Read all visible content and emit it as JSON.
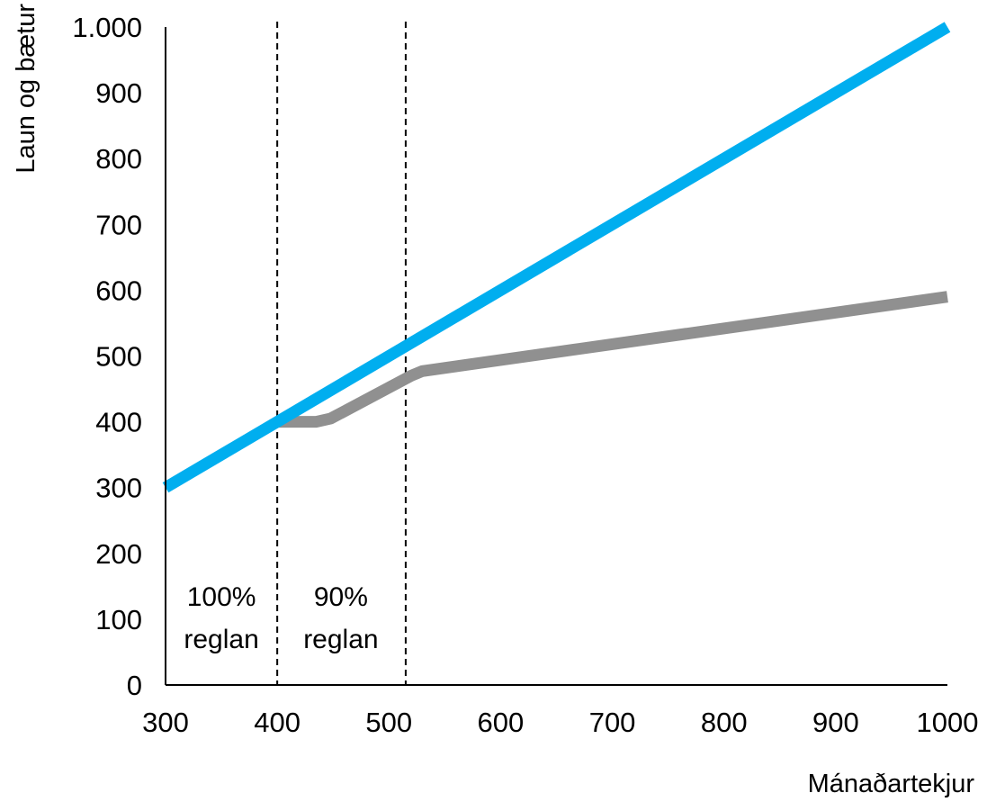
{
  "chart_data": {
    "type": "line",
    "title": "",
    "xlabel": "Mánaðartekjur",
    "ylabel": "Laun og bætur",
    "xlim": [
      300,
      1000
    ],
    "ylim": [
      0,
      1000
    ],
    "x_ticks": [
      300,
      400,
      500,
      600,
      700,
      800,
      900,
      1000
    ],
    "x_tick_labels": [
      "300",
      "400",
      "500",
      "600",
      "700",
      "800",
      "900",
      "1000"
    ],
    "y_ticks": [
      0,
      100,
      200,
      300,
      400,
      500,
      600,
      700,
      800,
      900,
      1000
    ],
    "y_tick_labels": [
      "0",
      "100",
      "200",
      "300",
      "400",
      "500",
      "600",
      "700",
      "800",
      "900",
      "1.000"
    ],
    "grid": false,
    "legend": "none",
    "series": [
      {
        "color": "#00aeef",
        "points": [
          [
            300,
            300
          ],
          [
            1000,
            1000
          ]
        ]
      },
      {
        "color": "#909090",
        "points": [
          [
            400,
            400
          ],
          [
            435,
            400
          ],
          [
            448,
            405
          ],
          [
            520,
            470
          ],
          [
            530,
            477
          ],
          [
            1000,
            590
          ]
        ]
      }
    ],
    "reference_lines": [
      {
        "x": 400,
        "style": "dashed"
      },
      {
        "x": 515,
        "style": "dashed"
      }
    ],
    "annotations": [
      {
        "x": 350,
        "lines": [
          "100%",
          "reglan"
        ]
      },
      {
        "x": 457,
        "lines": [
          "90%",
          "reglan"
        ]
      }
    ]
  }
}
